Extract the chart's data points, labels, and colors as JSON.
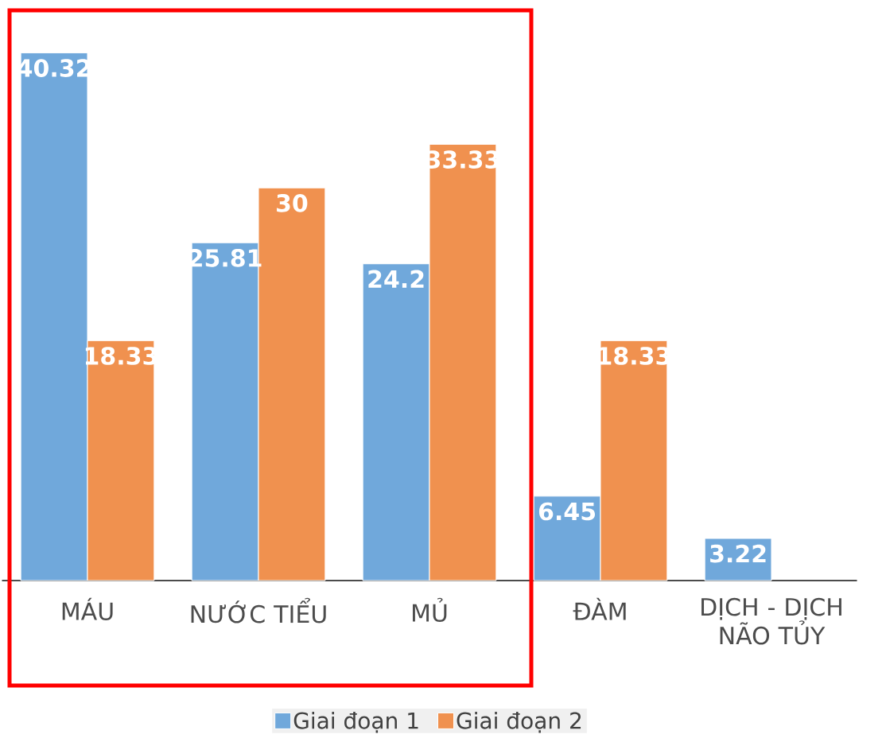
{
  "chart_data": {
    "type": "bar",
    "categories": [
      "MÁU",
      "NƯỚC TIỂU",
      "MỦ",
      "ĐÀM",
      "DỊCH - DỊCH NÃO TỦY"
    ],
    "series": [
      {
        "name": "Giai đoạn 1",
        "color": "#70a8db",
        "values": [
          40.32,
          25.81,
          24.2,
          6.45,
          3.22
        ]
      },
      {
        "name": "Giai đoạn 2",
        "color": "#f0914f",
        "values": [
          18.33,
          30,
          33.33,
          18.33,
          null
        ]
      }
    ],
    "data_labels": true,
    "legend": "bottom"
  }
}
